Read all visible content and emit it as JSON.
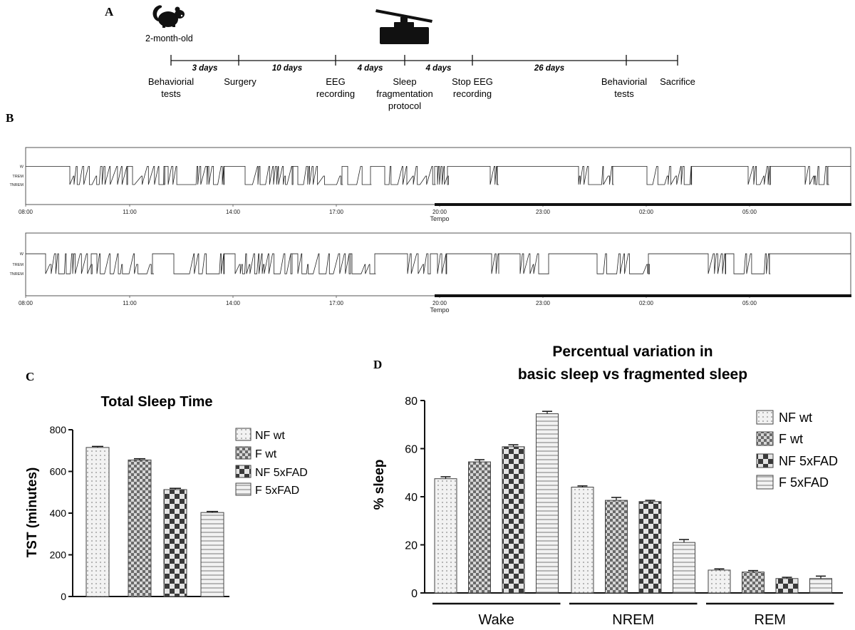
{
  "panels": {
    "a": {
      "letter": "A",
      "age_label": "2-month-old",
      "segments": [
        {
          "days": "3 days"
        },
        {
          "days": "10 days"
        },
        {
          "days": "4 days"
        },
        {
          "days": "4 days"
        },
        {
          "days": "26 days"
        }
      ],
      "events": [
        {
          "lines": [
            "Behaviorial",
            "tests"
          ]
        },
        {
          "lines": [
            "Surgery"
          ]
        },
        {
          "lines": [
            "EEG",
            "recording"
          ]
        },
        {
          "lines": [
            "Sleep",
            "fragmentation",
            "protocol"
          ]
        },
        {
          "lines": [
            "Stop EEG",
            "recording"
          ]
        },
        {
          "lines": [
            "Behaviorial",
            "tests"
          ]
        },
        {
          "lines": [
            "Sacrifice"
          ]
        }
      ]
    },
    "b": {
      "letter": "B",
      "state_labels": [
        "W",
        "TREM",
        "TNREM"
      ],
      "time_ticks": [
        "08:00",
        "11:00",
        "14:00",
        "17:00",
        "20:00",
        "23:00",
        "02:00",
        "05:00"
      ],
      "xlabel": "Tempo"
    },
    "c": {
      "letter": "C"
    },
    "d": {
      "letter": "D"
    }
  },
  "chart_data": [
    {
      "type": "bar",
      "title": "Total Sleep Time",
      "xlabel": "",
      "ylabel": "TST (minutes)",
      "ylim": [
        0,
        800
      ],
      "yticks": [
        "0",
        "200",
        "400",
        "600",
        "800"
      ],
      "grid": false,
      "legend_position": "right",
      "series": [
        {
          "name": "NF wt",
          "value": 715,
          "error": 5
        },
        {
          "name": "F wt",
          "value": 655,
          "error": 6
        },
        {
          "name": "NF 5xFAD",
          "value": 513,
          "error": 6
        },
        {
          "name": "F 5xFAD",
          "value": 403,
          "error": 5
        }
      ]
    },
    {
      "type": "bar",
      "title": "Percentual variation in basic sleep vs fragmented sleep",
      "title_lines": [
        "Percentual variation in",
        "basic sleep vs fragmented sleep"
      ],
      "xlabel": "",
      "ylabel": "% sleep",
      "ylim": [
        0,
        80
      ],
      "yticks": [
        "0",
        "20",
        "40",
        "60",
        "80"
      ],
      "grid": false,
      "legend_position": "top-right",
      "categories": [
        "Wake",
        "NREM",
        "REM"
      ],
      "series": [
        {
          "name": "NF wt",
          "values": [
            47.5,
            44,
            9.5
          ],
          "errors": [
            0.8,
            0.5,
            0.5
          ]
        },
        {
          "name": "F wt",
          "values": [
            54.5,
            38.5,
            8.7
          ],
          "errors": [
            0.9,
            1.2,
            0.6
          ]
        },
        {
          "name": "NF 5xFAD",
          "values": [
            60.8,
            38,
            6
          ],
          "errors": [
            0.8,
            0.5,
            0.5
          ]
        },
        {
          "name": "F 5xFAD",
          "values": [
            74.5,
            21,
            6
          ],
          "errors": [
            1.0,
            1.2,
            1.0
          ]
        }
      ]
    }
  ]
}
